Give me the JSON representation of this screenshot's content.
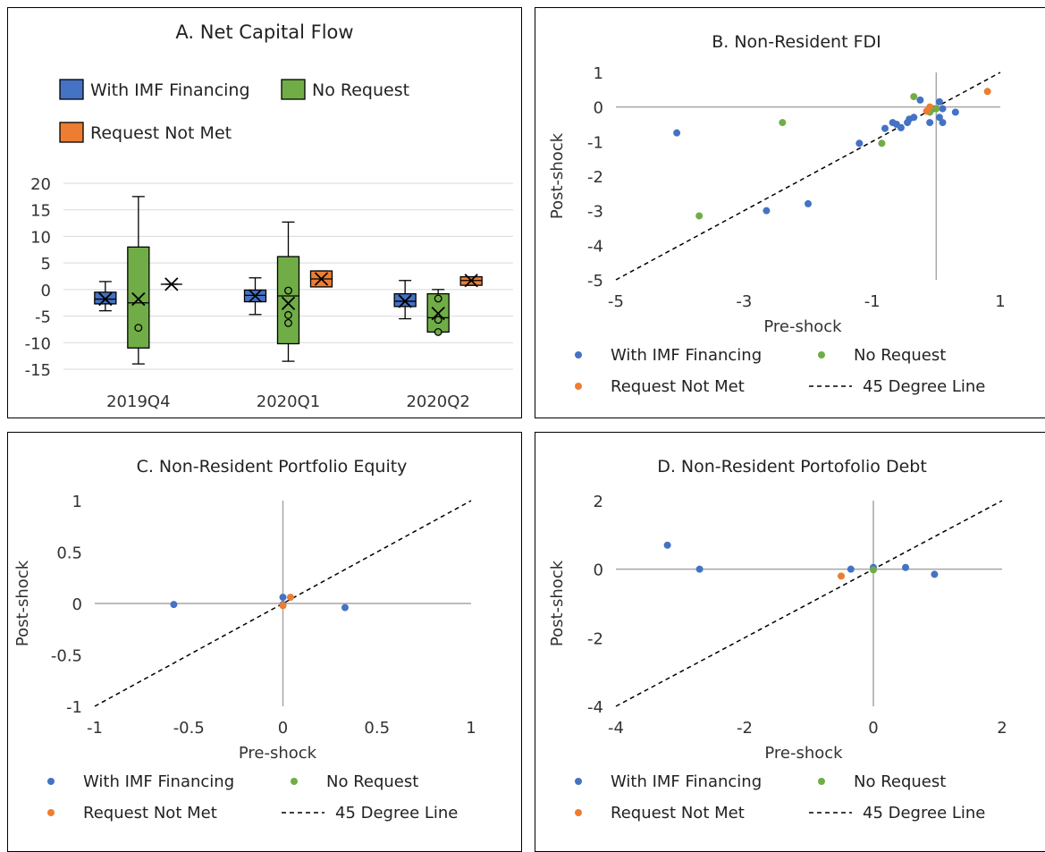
{
  "colors": {
    "imf": "#4472C4",
    "no_request": "#70AD47",
    "not_met": "#ED7D31",
    "grid": "#d9d9d9",
    "axis": "#a6a6a6"
  },
  "chart_data": [
    {
      "id": "A",
      "type": "box",
      "title": "A. Net Capital Flow",
      "legend": [
        "With IMF Financing",
        "No Request",
        "Request Not Met"
      ],
      "legend_position": "top",
      "categories": [
        "2019Q4",
        "2020Q1",
        "2020Q2"
      ],
      "ylim": [
        -15,
        20
      ],
      "yticks": [
        20,
        15,
        10,
        5,
        0,
        -5,
        -10,
        -15
      ],
      "grid": true,
      "series": [
        {
          "name": "With IMF Financing",
          "color": "#4472C4",
          "boxes": [
            {
              "min": -4,
              "q1": -2.7,
              "median": -1.8,
              "mean": -1.8,
              "q3": -0.5,
              "max": 1.5,
              "outliers": []
            },
            {
              "min": -4.7,
              "q1": -2.3,
              "median": -1.1,
              "mean": -1.2,
              "q3": -0.1,
              "max": 2.2,
              "outliers": []
            },
            {
              "min": -5.5,
              "q1": -3.2,
              "median": -2.2,
              "mean": -2.2,
              "q3": -0.8,
              "max": 1.7,
              "outliers": []
            }
          ]
        },
        {
          "name": "No Request",
          "color": "#70AD47",
          "boxes": [
            {
              "min": -14,
              "q1": -11,
              "median": -2.5,
              "mean": -1.8,
              "q3": 8,
              "max": 17.5,
              "outliers": [
                -7.2
              ]
            },
            {
              "min": -13.5,
              "q1": -10.2,
              "median": -1.2,
              "mean": -2.6,
              "q3": 6.2,
              "max": 12.7,
              "outliers": [
                -0.2,
                -4.8,
                -6.3
              ]
            },
            {
              "min": -8,
              "q1": -8,
              "median": -5.3,
              "mean": -4.5,
              "q3": -0.8,
              "max": 0,
              "outliers": [
                -1.7,
                -5.7,
                -8
              ]
            }
          ]
        },
        {
          "name": "Request Not Met",
          "color": "#ED7D31",
          "boxes": [
            {
              "min": 1,
              "q1": 1,
              "median": 1,
              "mean": 1,
              "q3": 1,
              "max": 1,
              "outliers": []
            },
            {
              "min": 0.5,
              "q1": 0.5,
              "median": 2,
              "mean": 2,
              "q3": 3.5,
              "max": 3.5,
              "outliers": []
            },
            {
              "min": 0.8,
              "q1": 0.8,
              "median": 1.7,
              "mean": 1.7,
              "q3": 2.4,
              "max": 2.4,
              "outliers": []
            }
          ]
        }
      ]
    },
    {
      "id": "B",
      "type": "scatter",
      "title": "B. Non-Resident FDI",
      "xlabel": "Pre-shock",
      "ylabel": "Post-shock",
      "xlim": [
        -5,
        1
      ],
      "ylim": [
        -5,
        1
      ],
      "xticks": [
        -5,
        -3,
        -1,
        1
      ],
      "yticks": [
        1,
        0,
        -1,
        -2,
        -3,
        -4,
        -5
      ],
      "xtick_labels": [
        "-5",
        "-3",
        "-1",
        "1"
      ],
      "ytick_labels": [
        "1",
        "0",
        "-1",
        "-2",
        "-3",
        "-4",
        "-5"
      ],
      "axis_cross": [
        0,
        0
      ],
      "legend": [
        "With IMF Financing",
        "No Request",
        "Request Not Met",
        "45 Degree Line"
      ],
      "legend_position": "bottom",
      "series": [
        {
          "name": "With IMF Financing",
          "color": "#4472C4",
          "points": [
            [
              -4.05,
              -0.75
            ],
            [
              -2.65,
              -3.0
            ],
            [
              -2.0,
              -2.8
            ],
            [
              -1.2,
              -1.05
            ],
            [
              -0.8,
              -0.62
            ],
            [
              -0.68,
              -0.45
            ],
            [
              -0.62,
              -0.5
            ],
            [
              -0.55,
              -0.6
            ],
            [
              -0.45,
              -0.45
            ],
            [
              -0.42,
              -0.35
            ],
            [
              -0.35,
              -0.3
            ],
            [
              -0.25,
              0.2
            ],
            [
              -0.1,
              -0.45
            ],
            [
              -0.05,
              -0.05
            ],
            [
              0.05,
              -0.3
            ],
            [
              0.05,
              0.15
            ],
            [
              0.1,
              -0.05
            ],
            [
              0.1,
              -0.45
            ],
            [
              0.3,
              -0.15
            ]
          ]
        },
        {
          "name": "No Request",
          "color": "#70AD47",
          "points": [
            [
              -3.7,
              -3.15
            ],
            [
              -2.4,
              -0.45
            ],
            [
              -0.85,
              -1.05
            ],
            [
              -0.35,
              0.3
            ],
            [
              -0.1,
              -0.15
            ],
            [
              0.0,
              -0.05
            ]
          ]
        },
        {
          "name": "Request Not Met",
          "color": "#ED7D31",
          "points": [
            [
              0.8,
              0.45
            ],
            [
              -0.15,
              -0.12
            ],
            [
              -0.1,
              0.0
            ]
          ]
        }
      ],
      "line": {
        "name": "45 Degree Line",
        "from": [
          -5,
          -5
        ],
        "to": [
          1,
          1
        ]
      }
    },
    {
      "id": "C",
      "type": "scatter",
      "title": "C. Non-Resident Portfolio Equity",
      "xlabel": "Pre-shock",
      "ylabel": "Post-shock",
      "xlim": [
        -1,
        1
      ],
      "ylim": [
        -1,
        1
      ],
      "xticks": [
        -1,
        -0.5,
        0,
        0.5,
        1
      ],
      "yticks": [
        1,
        0.5,
        0,
        -0.5,
        -1
      ],
      "xtick_labels": [
        "-1",
        "-0.5",
        "0",
        "0.5",
        "1"
      ],
      "ytick_labels": [
        "1",
        "0.5",
        "0",
        "-0.5",
        "-1"
      ],
      "axis_cross": [
        0,
        0
      ],
      "legend": [
        "With IMF Financing",
        "No Request",
        "Request Not Met",
        "45 Degree Line"
      ],
      "legend_position": "bottom",
      "series": [
        {
          "name": "With IMF Financing",
          "color": "#4472C4",
          "points": [
            [
              -0.58,
              -0.01
            ],
            [
              0.33,
              -0.04
            ],
            [
              0.0,
              0.06
            ],
            [
              0.0,
              -0.01
            ]
          ]
        },
        {
          "name": "No Request",
          "color": "#70AD47",
          "points": [
            [
              0.0,
              -0.02
            ]
          ]
        },
        {
          "name": "Request Not Met",
          "color": "#ED7D31",
          "points": [
            [
              0.04,
              0.06
            ],
            [
              0.0,
              -0.02
            ]
          ]
        }
      ],
      "line": {
        "name": "45 Degree Line",
        "from": [
          -1,
          -1
        ],
        "to": [
          1,
          1
        ]
      }
    },
    {
      "id": "D",
      "type": "scatter",
      "title": "D. Non-Resident Portofolio Debt",
      "xlabel": "Pre-shock",
      "ylabel": "Post-shock",
      "xlim": [
        -4,
        2
      ],
      "ylim": [
        -4,
        2
      ],
      "xticks": [
        -4,
        -2,
        0,
        2
      ],
      "yticks": [
        2,
        0,
        -2,
        -4
      ],
      "xtick_labels": [
        "-4",
        "-2",
        "0",
        "2"
      ],
      "ytick_labels": [
        "2",
        "0",
        "-2",
        "-4"
      ],
      "axis_cross": [
        0,
        0
      ],
      "legend": [
        "With IMF Financing",
        "No Request",
        "Request Not Met",
        "45 Degree Line"
      ],
      "legend_position": "bottom",
      "series": [
        {
          "name": "With IMF Financing",
          "color": "#4472C4",
          "points": [
            [
              -3.2,
              0.7
            ],
            [
              -2.7,
              0.0
            ],
            [
              -0.35,
              0.0
            ],
            [
              0.0,
              0.05
            ],
            [
              0.5,
              0.05
            ],
            [
              0.95,
              -0.15
            ]
          ]
        },
        {
          "name": "No Request",
          "color": "#70AD47",
          "points": [
            [
              0.0,
              -0.02
            ]
          ]
        },
        {
          "name": "Request Not Met",
          "color": "#ED7D31",
          "points": [
            [
              -0.5,
              -0.2
            ]
          ]
        }
      ],
      "line": {
        "name": "45 Degree Line",
        "from": [
          -4,
          -4
        ],
        "to": [
          2,
          2
        ]
      }
    }
  ]
}
